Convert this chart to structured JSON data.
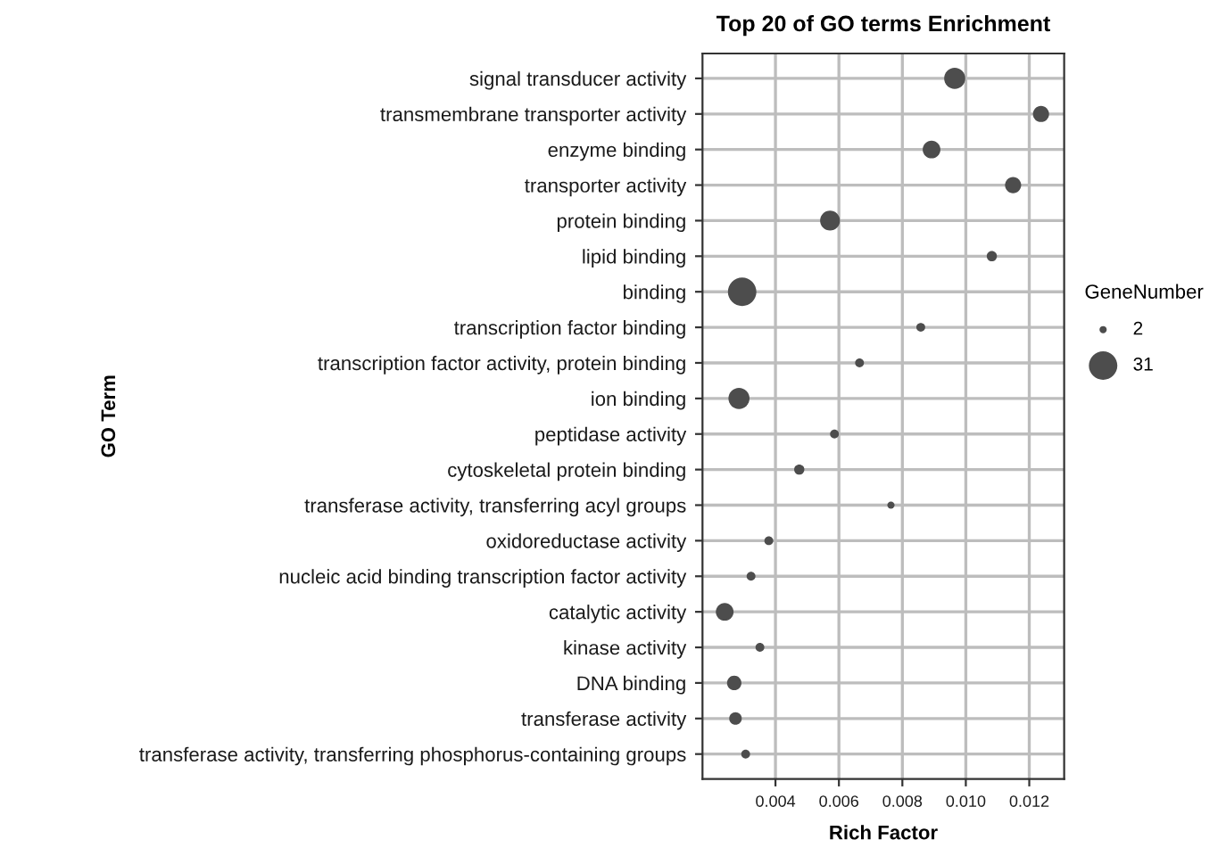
{
  "chart_data": {
    "type": "bubble",
    "title": "Top 20 of GO terms Enrichment",
    "xlabel": "Rich Factor",
    "ylabel": "GO Term",
    "legend_title": "GeneNumber",
    "orientation": "horizontal",
    "categories": [
      "signal transducer activity",
      "transmembrane transporter activity",
      "enzyme binding",
      "transporter activity",
      "protein binding",
      "lipid binding",
      "binding",
      "transcription factor binding",
      "transcription factor activity, protein binding",
      "ion binding",
      "peptidase activity",
      "cytoskeletal protein binding",
      "transferase activity, transferring acyl groups",
      "oxidoreductase activity",
      "nucleic acid binding transcription factor activity",
      "catalytic activity",
      "kinase activity",
      "DNA binding",
      "transferase activity",
      "transferase activity, transferring phosphorus-containing groups"
    ],
    "series": [
      {
        "color": "#4d4d4d",
        "values": [
          0.00965,
          0.01237,
          0.00892,
          0.01149,
          0.00572,
          0.01082,
          0.00295,
          0.00858,
          0.00665,
          0.00285,
          0.00586,
          0.00475,
          0.00764,
          0.00379,
          0.00323,
          0.0024,
          0.00351,
          0.0027,
          0.00274,
          0.00306
        ],
        "sizes": [
          17,
          10,
          12,
          10,
          15,
          4,
          31,
          3,
          3,
          17,
          3,
          4,
          2,
          3,
          3,
          12,
          3,
          8,
          6,
          3
        ]
      }
    ],
    "size_legend": [
      2,
      31
    ],
    "xlim": [
      0.0017,
      0.0131
    ],
    "xticks": [
      {
        "value": 0.004,
        "label": "0.004"
      },
      {
        "value": 0.006,
        "label": "0.006"
      },
      {
        "value": 0.008,
        "label": "0.008"
      },
      {
        "value": 0.01,
        "label": "0.010"
      },
      {
        "value": 0.012,
        "label": "0.012"
      }
    ],
    "grid": true,
    "marker": "circle"
  }
}
